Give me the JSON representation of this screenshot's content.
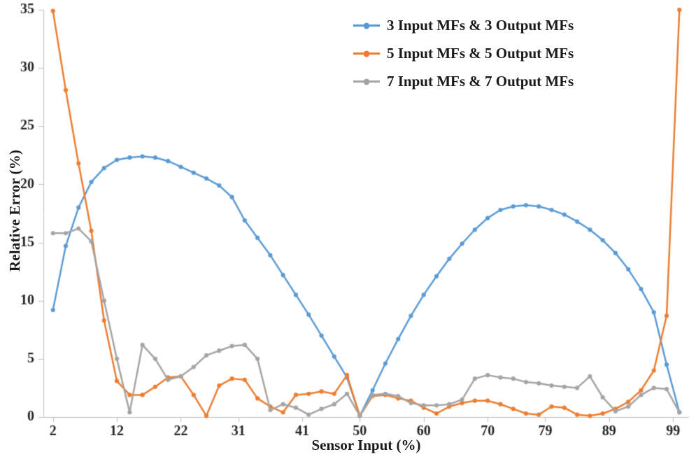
{
  "figure": {
    "background": "#FFFFFF"
  },
  "chart_data": {
    "type": "line",
    "title": "",
    "xlabel": "Sensor Input (%)",
    "ylabel": "Relative Error (%)",
    "x_ticks": [
      2,
      12,
      22,
      31,
      41,
      50,
      60,
      70,
      79,
      89,
      99
    ],
    "y_ticks": [
      0,
      5,
      10,
      15,
      20,
      25,
      30,
      35
    ],
    "xlim": [
      0.5,
      101.5
    ],
    "ylim": [
      0,
      35
    ],
    "grid": false,
    "legend_position": "top-center",
    "axis_color": "#BFBFBF",
    "text_color": "#262626",
    "marker": "circle",
    "x": [
      2,
      4,
      6,
      8,
      10,
      12,
      14,
      16,
      18,
      20,
      22,
      24,
      26,
      28,
      30,
      32,
      34,
      36,
      38,
      40,
      42,
      44,
      46,
      48,
      50,
      52,
      54,
      56,
      58,
      60,
      62,
      64,
      66,
      68,
      70,
      72,
      74,
      76,
      78,
      80,
      82,
      84,
      86,
      88,
      90,
      92,
      94,
      96,
      98,
      100
    ],
    "series": [
      {
        "name": "3 Input MFs & 3 Output MFs",
        "color": "#5B9BD5",
        "values": [
          9.2,
          14.7,
          18.0,
          20.2,
          21.4,
          22.1,
          22.3,
          22.4,
          22.3,
          22.0,
          21.5,
          21.0,
          20.5,
          19.9,
          18.9,
          16.9,
          15.4,
          13.9,
          12.2,
          10.5,
          8.8,
          7.0,
          5.2,
          3.4,
          0.1,
          2.3,
          4.6,
          6.7,
          8.7,
          10.5,
          12.1,
          13.6,
          14.9,
          16.1,
          17.1,
          17.8,
          18.1,
          18.2,
          18.1,
          17.8,
          17.4,
          16.8,
          16.1,
          15.2,
          14.1,
          12.7,
          11.0,
          9.0,
          4.5,
          0.4
        ]
      },
      {
        "name": "5 Input MFs & 5 Output MFs",
        "color": "#ED7D31",
        "values": [
          34.9,
          28.1,
          21.8,
          16.0,
          8.3,
          3.1,
          1.9,
          1.9,
          2.6,
          3.4,
          3.5,
          1.9,
          0.1,
          2.7,
          3.3,
          3.2,
          1.6,
          0.9,
          0.4,
          1.9,
          2.0,
          2.2,
          2.0,
          3.6,
          0.1,
          1.8,
          1.9,
          1.6,
          1.4,
          0.8,
          0.3,
          0.9,
          1.2,
          1.4,
          1.4,
          1.1,
          0.7,
          0.3,
          0.2,
          0.9,
          0.8,
          0.2,
          0.1,
          0.3,
          0.7,
          1.3,
          2.3,
          4.0,
          8.7,
          35.0
        ]
      },
      {
        "name": "7 Input MFs & 7 Output MFs",
        "color": "#A5A5A5",
        "values": [
          15.8,
          15.8,
          16.2,
          15.1,
          10.0,
          5.0,
          0.4,
          6.2,
          5.0,
          3.2,
          3.5,
          4.3,
          5.3,
          5.7,
          6.1,
          6.2,
          5.0,
          0.6,
          1.1,
          0.8,
          0.2,
          0.7,
          1.1,
          2.0,
          0.1,
          1.9,
          2.0,
          1.8,
          1.2,
          1.0,
          1.0,
          1.1,
          1.5,
          3.3,
          3.6,
          3.4,
          3.3,
          3.0,
          2.9,
          2.7,
          2.6,
          2.5,
          3.5,
          1.7,
          0.5,
          0.9,
          1.9,
          2.5,
          2.4,
          0.4
        ]
      }
    ]
  }
}
